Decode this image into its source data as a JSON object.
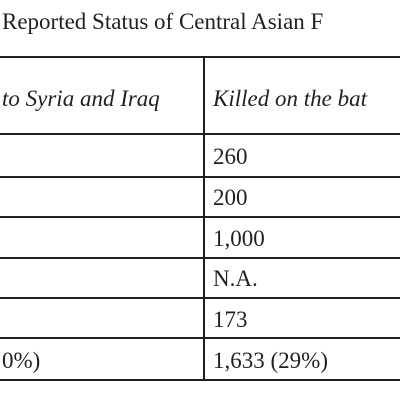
{
  "document": {
    "title": "Reported Status of Central Asian F"
  },
  "table": {
    "headers": {
      "col1": "to Syria and Iraq",
      "col2": "Killed on the bat"
    },
    "rows": [
      {
        "col1": "",
        "col2": "260"
      },
      {
        "col1": "",
        "col2": "200"
      },
      {
        "col1": "",
        "col2": "1,000"
      },
      {
        "col1": "",
        "col2": "N.A."
      },
      {
        "col1": "",
        "col2": "173"
      },
      {
        "col1": "0%)",
        "col2": "1,633 (29%)"
      }
    ]
  }
}
